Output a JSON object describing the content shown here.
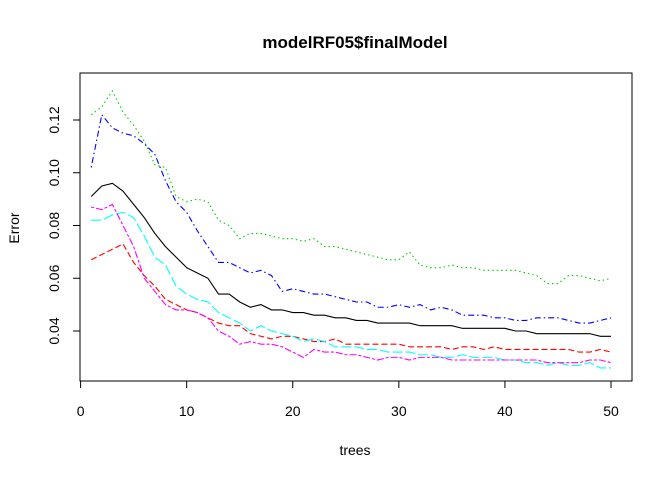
{
  "chart_data": {
    "type": "line",
    "title": "modelRF05$finalModel",
    "xlabel": "trees",
    "ylabel": "Error",
    "xlim": [
      1,
      50
    ],
    "ylim": [
      0.025,
      0.13
    ],
    "x_ticks": [
      0,
      10,
      20,
      30,
      40,
      50
    ],
    "y_ticks": [
      0.04,
      0.06,
      0.08,
      0.1,
      0.12
    ],
    "y_tick_labels": [
      "0.04",
      "0.06",
      "0.08",
      "0.10",
      "0.12"
    ],
    "grid": false,
    "legend": "none",
    "x": [
      1,
      2,
      3,
      4,
      5,
      6,
      7,
      8,
      9,
      10,
      11,
      12,
      13,
      14,
      15,
      16,
      17,
      18,
      19,
      20,
      21,
      22,
      23,
      24,
      25,
      26,
      27,
      28,
      29,
      30,
      31,
      32,
      33,
      34,
      35,
      36,
      37,
      38,
      39,
      40,
      41,
      42,
      43,
      44,
      45,
      46,
      47,
      48,
      49,
      50
    ],
    "series": [
      {
        "color": "#000000",
        "dash": "solid",
        "values": [
          0.091,
          0.095,
          0.096,
          0.093,
          0.088,
          0.083,
          0.077,
          0.072,
          0.068,
          0.064,
          0.062,
          0.06,
          0.054,
          0.054,
          0.051,
          0.049,
          0.05,
          0.048,
          0.048,
          0.047,
          0.047,
          0.046,
          0.046,
          0.045,
          0.045,
          0.044,
          0.044,
          0.043,
          0.043,
          0.043,
          0.043,
          0.042,
          0.042,
          0.042,
          0.042,
          0.041,
          0.041,
          0.041,
          0.041,
          0.041,
          0.04,
          0.04,
          0.039,
          0.039,
          0.039,
          0.039,
          0.039,
          0.039,
          0.038,
          0.038
        ]
      },
      {
        "color": "#ff0000",
        "dash": "dashed",
        "values": [
          0.067,
          0.069,
          0.071,
          0.073,
          0.066,
          0.061,
          0.057,
          0.052,
          0.05,
          0.048,
          0.047,
          0.045,
          0.043,
          0.042,
          0.042,
          0.039,
          0.038,
          0.037,
          0.038,
          0.038,
          0.037,
          0.036,
          0.036,
          0.037,
          0.035,
          0.035,
          0.035,
          0.035,
          0.035,
          0.035,
          0.034,
          0.034,
          0.034,
          0.034,
          0.033,
          0.034,
          0.034,
          0.033,
          0.034,
          0.033,
          0.033,
          0.033,
          0.033,
          0.033,
          0.033,
          0.033,
          0.032,
          0.032,
          0.033,
          0.032
        ]
      },
      {
        "color": "#00cd00",
        "dash": "dotted",
        "values": [
          0.122,
          0.125,
          0.131,
          0.123,
          0.118,
          0.112,
          0.103,
          0.102,
          0.091,
          0.089,
          0.09,
          0.089,
          0.082,
          0.08,
          0.075,
          0.077,
          0.077,
          0.076,
          0.075,
          0.075,
          0.074,
          0.075,
          0.072,
          0.072,
          0.071,
          0.07,
          0.069,
          0.068,
          0.067,
          0.067,
          0.07,
          0.065,
          0.064,
          0.064,
          0.065,
          0.064,
          0.064,
          0.063,
          0.063,
          0.063,
          0.063,
          0.062,
          0.061,
          0.058,
          0.058,
          0.061,
          0.061,
          0.06,
          0.059,
          0.06
        ]
      },
      {
        "color": "#0000ff",
        "dash": "dotdash",
        "values": [
          0.102,
          0.122,
          0.117,
          0.115,
          0.114,
          0.111,
          0.107,
          0.097,
          0.089,
          0.085,
          0.078,
          0.072,
          0.066,
          0.066,
          0.064,
          0.062,
          0.063,
          0.061,
          0.055,
          0.056,
          0.055,
          0.054,
          0.054,
          0.053,
          0.052,
          0.051,
          0.051,
          0.049,
          0.049,
          0.05,
          0.049,
          0.05,
          0.048,
          0.049,
          0.048,
          0.046,
          0.046,
          0.046,
          0.045,
          0.045,
          0.044,
          0.044,
          0.045,
          0.045,
          0.045,
          0.044,
          0.043,
          0.043,
          0.044,
          0.045
        ]
      },
      {
        "color": "#00ffff",
        "dash": "longdash",
        "values": [
          0.082,
          0.082,
          0.084,
          0.085,
          0.083,
          0.076,
          0.068,
          0.065,
          0.057,
          0.054,
          0.052,
          0.051,
          0.047,
          0.045,
          0.043,
          0.04,
          0.042,
          0.04,
          0.039,
          0.038,
          0.036,
          0.037,
          0.036,
          0.034,
          0.034,
          0.034,
          0.033,
          0.033,
          0.032,
          0.032,
          0.032,
          0.031,
          0.031,
          0.03,
          0.03,
          0.031,
          0.03,
          0.03,
          0.03,
          0.029,
          0.029,
          0.028,
          0.028,
          0.027,
          0.028,
          0.027,
          0.027,
          0.028,
          0.026,
          0.026
        ]
      },
      {
        "color": "#ff00ff",
        "dash": "twodash",
        "values": [
          0.087,
          0.086,
          0.088,
          0.08,
          0.072,
          0.06,
          0.055,
          0.05,
          0.048,
          0.048,
          0.047,
          0.045,
          0.04,
          0.038,
          0.035,
          0.036,
          0.035,
          0.035,
          0.034,
          0.032,
          0.03,
          0.033,
          0.032,
          0.032,
          0.031,
          0.031,
          0.03,
          0.029,
          0.03,
          0.03,
          0.029,
          0.03,
          0.03,
          0.03,
          0.029,
          0.029,
          0.029,
          0.029,
          0.029,
          0.029,
          0.029,
          0.029,
          0.029,
          0.028,
          0.028,
          0.028,
          0.028,
          0.029,
          0.029,
          0.028
        ]
      }
    ]
  }
}
